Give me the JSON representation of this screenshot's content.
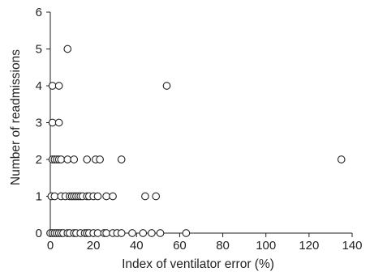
{
  "chart_data": {
    "type": "scatter",
    "title": "",
    "xlabel": "Index of ventilator error (%)",
    "ylabel": "Number of readmissions",
    "xlim": [
      0,
      140
    ],
    "ylim": [
      0,
      6
    ],
    "xticks": [
      0,
      20,
      40,
      60,
      80,
      100,
      120,
      140
    ],
    "yticks": [
      0,
      1,
      2,
      3,
      4,
      5,
      6
    ],
    "grid": false,
    "legend": "none",
    "marker": "open-circle",
    "colors": {
      "axis": "#231f20",
      "marker_fill": "#ffffff",
      "marker_stroke": "#231f20"
    },
    "points": [
      {
        "x": 8,
        "y": 5
      },
      {
        "x": 1,
        "y": 4
      },
      {
        "x": 4,
        "y": 4
      },
      {
        "x": 54,
        "y": 4
      },
      {
        "x": 1,
        "y": 3
      },
      {
        "x": 4,
        "y": 3
      },
      {
        "x": 1,
        "y": 2
      },
      {
        "x": 2,
        "y": 2
      },
      {
        "x": 3,
        "y": 2
      },
      {
        "x": 4,
        "y": 2
      },
      {
        "x": 5,
        "y": 2
      },
      {
        "x": 8,
        "y": 2
      },
      {
        "x": 11,
        "y": 2
      },
      {
        "x": 17,
        "y": 2
      },
      {
        "x": 21,
        "y": 2
      },
      {
        "x": 23,
        "y": 2
      },
      {
        "x": 33,
        "y": 2
      },
      {
        "x": 135,
        "y": 2
      },
      {
        "x": 0.5,
        "y": 1
      },
      {
        "x": 2,
        "y": 1
      },
      {
        "x": 5,
        "y": 1
      },
      {
        "x": 7,
        "y": 1
      },
      {
        "x": 9,
        "y": 1
      },
      {
        "x": 10,
        "y": 1
      },
      {
        "x": 11,
        "y": 1
      },
      {
        "x": 12,
        "y": 1
      },
      {
        "x": 13,
        "y": 1
      },
      {
        "x": 14,
        "y": 1
      },
      {
        "x": 15,
        "y": 1
      },
      {
        "x": 17,
        "y": 1
      },
      {
        "x": 18,
        "y": 1
      },
      {
        "x": 20,
        "y": 1
      },
      {
        "x": 22,
        "y": 1
      },
      {
        "x": 26,
        "y": 1
      },
      {
        "x": 29,
        "y": 1
      },
      {
        "x": 44,
        "y": 1
      },
      {
        "x": 49,
        "y": 1
      },
      {
        "x": 0,
        "y": 0
      },
      {
        "x": 1,
        "y": 0
      },
      {
        "x": 2,
        "y": 0
      },
      {
        "x": 3,
        "y": 0
      },
      {
        "x": 4,
        "y": 0
      },
      {
        "x": 5,
        "y": 0
      },
      {
        "x": 6,
        "y": 0
      },
      {
        "x": 8,
        "y": 0
      },
      {
        "x": 9,
        "y": 0
      },
      {
        "x": 11,
        "y": 0
      },
      {
        "x": 12,
        "y": 0
      },
      {
        "x": 14,
        "y": 0
      },
      {
        "x": 16,
        "y": 0
      },
      {
        "x": 17,
        "y": 0
      },
      {
        "x": 18,
        "y": 0
      },
      {
        "x": 20,
        "y": 0
      },
      {
        "x": 22,
        "y": 0
      },
      {
        "x": 25,
        "y": 0
      },
      {
        "x": 26,
        "y": 0
      },
      {
        "x": 29,
        "y": 0
      },
      {
        "x": 31,
        "y": 0
      },
      {
        "x": 33,
        "y": 0
      },
      {
        "x": 38,
        "y": 0
      },
      {
        "x": 43,
        "y": 0
      },
      {
        "x": 47,
        "y": 0
      },
      {
        "x": 51,
        "y": 0
      },
      {
        "x": 63,
        "y": 0
      }
    ]
  }
}
